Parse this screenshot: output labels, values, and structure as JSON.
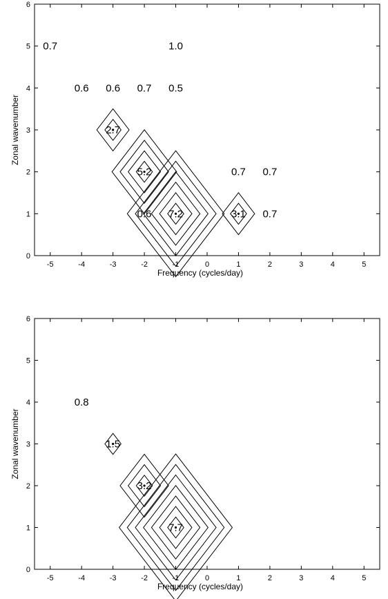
{
  "chart_data": [
    {
      "type": "contour",
      "xlabel": "Frequency (cycles/day)",
      "ylabel": "Zonal wavenumber",
      "xlim": [
        -5.5,
        5.5
      ],
      "ylim": [
        0,
        6
      ],
      "xticks": [
        "-5",
        "-4",
        "-3",
        "-2",
        "-1",
        "0",
        "1",
        "2",
        "3",
        "4",
        "5"
      ],
      "yticks": [
        "0",
        "1",
        "2",
        "3",
        "4",
        "5",
        "6"
      ],
      "peaks": [
        {
          "x": -3,
          "y": 3,
          "rings": 2
        },
        {
          "x": -2,
          "y": 2,
          "rings": 4
        },
        {
          "x": -1,
          "y": 1,
          "rings": 6
        },
        {
          "x": 1,
          "y": 1,
          "rings": 2
        }
      ],
      "values": [
        {
          "x": -5,
          "y": 5,
          "text": "0.7"
        },
        {
          "x": -1,
          "y": 5,
          "text": "1.0"
        },
        {
          "x": -4,
          "y": 4,
          "text": "0.6"
        },
        {
          "x": -3,
          "y": 4,
          "text": "0.6"
        },
        {
          "x": -2,
          "y": 4,
          "text": "0.7"
        },
        {
          "x": -1,
          "y": 4,
          "text": "0.5"
        },
        {
          "x": -3,
          "y": 3,
          "text": "2.7"
        },
        {
          "x": -2,
          "y": 2,
          "text": "5.2"
        },
        {
          "x": 1,
          "y": 2,
          "text": "0.7"
        },
        {
          "x": 2,
          "y": 2,
          "text": "0.7"
        },
        {
          "x": -2,
          "y": 1,
          "text": "0.6"
        },
        {
          "x": -1,
          "y": 1,
          "text": "7.2"
        },
        {
          "x": 1,
          "y": 1,
          "text": "3.1"
        },
        {
          "x": 2,
          "y": 1,
          "text": "0.7"
        }
      ]
    },
    {
      "type": "contour",
      "xlabel": "Frequency (cycles/day)",
      "ylabel": "Zonal wavenumber",
      "xlim": [
        -5.5,
        5.5
      ],
      "ylim": [
        0,
        6
      ],
      "xticks": [
        "-5",
        "-4",
        "-3",
        "-2",
        "-1",
        "0",
        "1",
        "2",
        "3",
        "4",
        "5"
      ],
      "yticks": [
        "0",
        "1",
        "2",
        "3",
        "4",
        "5",
        "6"
      ],
      "peaks": [
        {
          "x": -3,
          "y": 3,
          "rings": 1
        },
        {
          "x": -2,
          "y": 2,
          "rings": 3
        },
        {
          "x": -1,
          "y": 1,
          "rings": 7
        }
      ],
      "values": [
        {
          "x": -4,
          "y": 4,
          "text": "0.8"
        },
        {
          "x": -3,
          "y": 3,
          "text": "1.5"
        },
        {
          "x": -2,
          "y": 2,
          "text": "3.2"
        },
        {
          "x": -1,
          "y": 1,
          "text": "7.7"
        }
      ]
    }
  ]
}
